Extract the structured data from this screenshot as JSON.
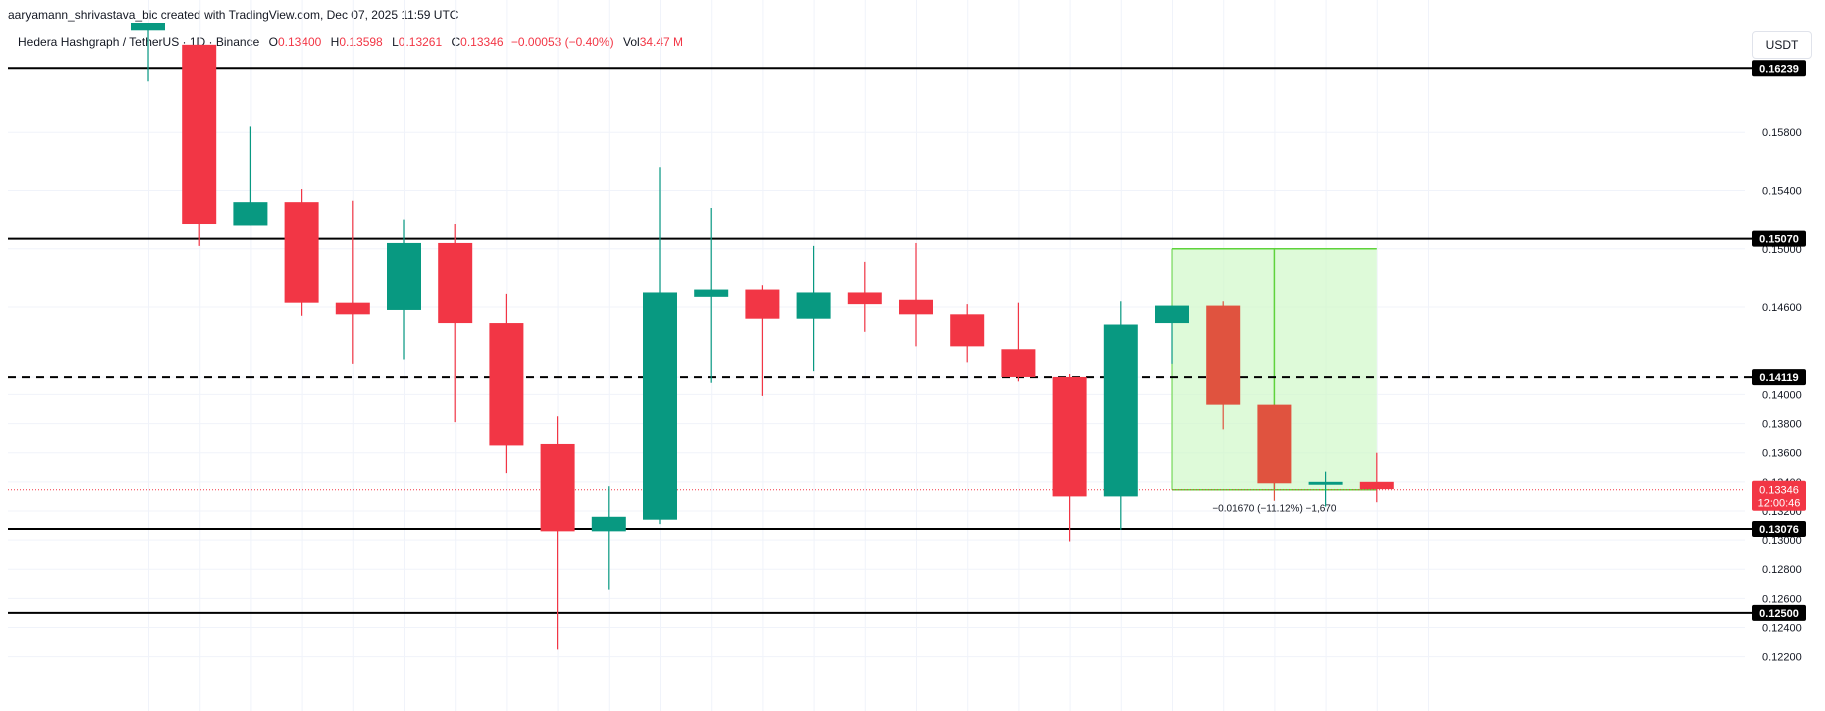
{
  "credit": "aaryamann_shrivastava_bic created with TradingView.com, Dec 07, 2025 11:59 UTC",
  "legend": {
    "symbol": "Hedera Hashgraph / TetherUS · 1D · Binance",
    "o_label": "O",
    "o_value": "0.13400",
    "h_label": "H",
    "h_value": "0.13598",
    "l_label": "L",
    "l_value": "0.13261",
    "c_label": "C",
    "c_value": "0.13346",
    "change": "−0.00053 (−0.40%)",
    "vol_label": "Vol",
    "vol_value": "34.47 M"
  },
  "currency_button": "USDT",
  "colors": {
    "up": "#089981",
    "down": "#f23645",
    "range_fill": "#ccf7c4",
    "range_line": "#5fd33c",
    "measured_down": "#e0533f"
  },
  "chart_data": {
    "type": "candlestick",
    "ylim": [
      0.121,
      0.1655
    ],
    "y_ticks": [
      "0.16239",
      "0.15800",
      "0.15400",
      "0.15070",
      "0.15000",
      "0.14600",
      "0.14119",
      "0.14000",
      "0.13800",
      "0.13600",
      "0.13400",
      "0.13200",
      "0.13076",
      "0.13000",
      "0.12800",
      "0.12600",
      "0.12500",
      "0.12400",
      "0.12200"
    ],
    "candles": [
      {
        "o": 0.165,
        "h": 0.1655,
        "l": 0.1615,
        "c": 0.1655
      },
      {
        "o": 0.164,
        "h": 0.164,
        "l": 0.1502,
        "c": 0.1517
      },
      {
        "o": 0.1516,
        "h": 0.1584,
        "l": 0.1516,
        "c": 0.1532
      },
      {
        "o": 0.1532,
        "h": 0.1541,
        "l": 0.1454,
        "c": 0.1463
      },
      {
        "o": 0.1463,
        "h": 0.1533,
        "l": 0.1421,
        "c": 0.1455
      },
      {
        "o": 0.1458,
        "h": 0.152,
        "l": 0.1424,
        "c": 0.1504
      },
      {
        "o": 0.1504,
        "h": 0.1517,
        "l": 0.1381,
        "c": 0.1449
      },
      {
        "o": 0.1449,
        "h": 0.1469,
        "l": 0.1346,
        "c": 0.1365
      },
      {
        "o": 0.1366,
        "h": 0.1385,
        "l": 0.1225,
        "c": 0.1306
      },
      {
        "o": 0.1306,
        "h": 0.1337,
        "l": 0.1266,
        "c": 0.1316
      },
      {
        "o": 0.1314,
        "h": 0.1556,
        "l": 0.1311,
        "c": 0.147
      },
      {
        "o": 0.1467,
        "h": 0.1528,
        "l": 0.1408,
        "c": 0.1472
      },
      {
        "o": 0.1472,
        "h": 0.1475,
        "l": 0.1399,
        "c": 0.1452
      },
      {
        "o": 0.1452,
        "h": 0.1502,
        "l": 0.1416,
        "c": 0.147
      },
      {
        "o": 0.147,
        "h": 0.1491,
        "l": 0.1443,
        "c": 0.1462
      },
      {
        "o": 0.1465,
        "h": 0.1504,
        "l": 0.1433,
        "c": 0.1455
      },
      {
        "o": 0.1455,
        "h": 0.1462,
        "l": 0.1422,
        "c": 0.1433
      },
      {
        "o": 0.1431,
        "h": 0.1463,
        "l": 0.1409,
        "c": 0.1412
      },
      {
        "o": 0.1412,
        "h": 0.1414,
        "l": 0.1299,
        "c": 0.133
      },
      {
        "o": 0.133,
        "h": 0.1464,
        "l": 0.1307,
        "c": 0.1448
      },
      {
        "o": 0.1449,
        "h": 0.1461,
        "l": 0.1421,
        "c": 0.1461
      },
      {
        "o": 0.1461,
        "h": 0.1464,
        "l": 0.1376,
        "c": 0.1393
      },
      {
        "o": 0.1393,
        "h": 0.1393,
        "l": 0.1327,
        "c": 0.1339
      },
      {
        "o": 0.1338,
        "h": 0.1347,
        "l": 0.1323,
        "c": 0.134
      },
      {
        "o": 0.134,
        "h": 0.136,
        "l": 0.1326,
        "c": 0.1335
      }
    ],
    "horizontal_levels": [
      {
        "price": 0.16239,
        "label": "0.16239",
        "style": "solid"
      },
      {
        "price": 0.1507,
        "label": "0.15070",
        "style": "solid"
      },
      {
        "price": 0.14119,
        "label": "0.14119",
        "style": "dashed"
      },
      {
        "price": 0.13076,
        "label": "0.13076",
        "style": "solid"
      },
      {
        "price": 0.125,
        "label": "0.12500",
        "style": "solid"
      }
    ],
    "last_price": {
      "price": 0.13346,
      "label": "0.13346",
      "countdown": "12:00:46"
    },
    "price_range": {
      "from_candle": 20,
      "to_candle": 24,
      "top": 0.15,
      "bottom": 0.13346,
      "label": "−0.01670 (−11.12%) −1,670"
    }
  }
}
